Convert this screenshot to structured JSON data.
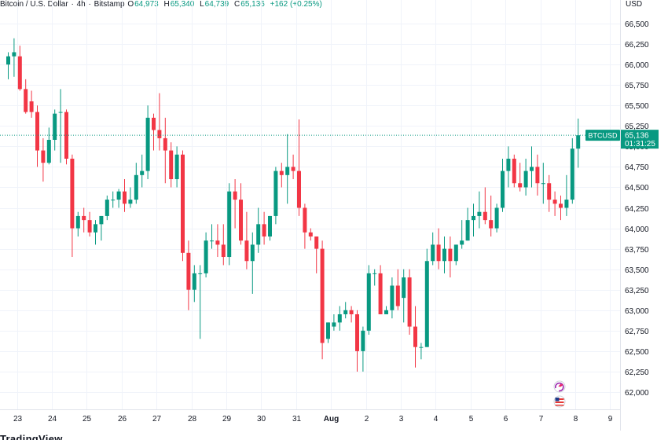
{
  "header": {
    "symbol": "Bitcoin / U.S. Dollar",
    "sep1": "·",
    "interval": "4h",
    "sep2": "·",
    "exchange": "Bitstamp",
    "open_label": "O",
    "open_value": "64,973",
    "high_label": "H",
    "high_value": "65,340",
    "low_label": "L",
    "low_value": "64,739",
    "close_label": "C",
    "close_value": "65,136",
    "change": "+162 (+0.25%)"
  },
  "currency": "USD",
  "footer": {
    "brand": "TradingView"
  },
  "colors": {
    "up": "#089981",
    "down": "#F23645",
    "grid": "#f0f3fa",
    "text": "#131722"
  },
  "chart_data": {
    "type": "candlestick",
    "symbol": "BTCUSD",
    "last_price_label": "65,136",
    "countdown": "01:31:25",
    "last_price": 65136,
    "ylim": [
      61750,
      66650
    ],
    "y_ticks": [
      62000,
      62250,
      62500,
      62750,
      63000,
      63250,
      63500,
      63750,
      64000,
      64250,
      64500,
      64750,
      65000,
      65250,
      65500,
      65750,
      66000,
      66250,
      66500
    ],
    "y_tick_labels": [
      "62,000",
      "62,250",
      "62,500",
      "62,750",
      "63,000",
      "63,250",
      "63,500",
      "63,750",
      "64,000",
      "64,250",
      "64,500",
      "64,750",
      "65,000",
      "65,250",
      "65,500",
      "65,750",
      "66,000",
      "66,250",
      "66,500"
    ],
    "x_ticks": [
      {
        "label": "23",
        "index": 1.5
      },
      {
        "label": "24",
        "index": 7.5
      },
      {
        "label": "25",
        "index": 13.5
      },
      {
        "label": "26",
        "index": 19.5
      },
      {
        "label": "27",
        "index": 25.5
      },
      {
        "label": "28",
        "index": 31.5
      },
      {
        "label": "29",
        "index": 37.5
      },
      {
        "label": "30",
        "index": 43.5
      },
      {
        "label": "31",
        "index": 49.5
      },
      {
        "label": "Aug",
        "index": 55.5
      },
      {
        "label": "2",
        "index": 61.5
      },
      {
        "label": "3",
        "index": 67.5
      },
      {
        "label": "4",
        "index": 73.5
      },
      {
        "label": "5",
        "index": 79.5
      },
      {
        "label": "6",
        "index": 85.5
      },
      {
        "label": "7",
        "index": 91.5
      },
      {
        "label": "8",
        "index": 97.5
      },
      {
        "label": "9",
        "index": 103.5
      }
    ],
    "candles": [
      [
        66000,
        66150,
        65820,
        66100
      ],
      [
        66100,
        66320,
        65850,
        66150
      ],
      [
        66100,
        66230,
        65680,
        65700
      ],
      [
        65700,
        65820,
        65400,
        65420
      ],
      [
        65550,
        65680,
        65350,
        65420
      ],
      [
        65420,
        65500,
        64750,
        64950
      ],
      [
        64950,
        65100,
        64570,
        64800
      ],
      [
        64800,
        65230,
        64780,
        65080
      ],
      [
        65080,
        65450,
        64950,
        65400
      ],
      [
        65420,
        65700,
        64800,
        65420
      ],
      [
        65420,
        65450,
        64780,
        64850
      ],
      [
        64850,
        64900,
        63650,
        64000
      ],
      [
        64000,
        64200,
        63900,
        64150
      ],
      [
        64150,
        64250,
        63950,
        64100
      ],
      [
        64100,
        64200,
        63900,
        63950
      ],
      [
        63950,
        64100,
        63800,
        64050
      ],
      [
        64050,
        64150,
        63850,
        64150
      ],
      [
        64150,
        64400,
        64100,
        64350
      ],
      [
        64350,
        64450,
        64250,
        64350
      ],
      [
        64350,
        64480,
        64250,
        64450
      ],
      [
        64450,
        64600,
        64200,
        64300
      ],
      [
        64300,
        64500,
        64250,
        64350
      ],
      [
        64350,
        64800,
        64300,
        64650
      ],
      [
        64650,
        64900,
        64500,
        64700
      ],
      [
        64700,
        65500,
        64600,
        65350
      ],
      [
        65350,
        65400,
        64950,
        65200
      ],
      [
        65200,
        65650,
        64950,
        65100
      ],
      [
        65100,
        65350,
        64550,
        64950
      ],
      [
        64950,
        65050,
        64500,
        64600
      ],
      [
        64600,
        65000,
        64500,
        64900
      ],
      [
        64900,
        64950,
        63600,
        63700
      ],
      [
        63700,
        63850,
        63000,
        63250
      ],
      [
        63250,
        63550,
        63100,
        63450
      ],
      [
        63450,
        63550,
        62650,
        63450
      ],
      [
        63450,
        63950,
        63400,
        63850
      ],
      [
        63850,
        64050,
        63750,
        63850
      ],
      [
        63850,
        64050,
        63650,
        63800
      ],
      [
        63800,
        64050,
        63550,
        63650
      ],
      [
        63650,
        64550,
        63550,
        64450
      ],
      [
        64450,
        64600,
        64000,
        64350
      ],
      [
        64350,
        64550,
        63800,
        63850
      ],
      [
        63850,
        64200,
        63500,
        63600
      ],
      [
        63600,
        63950,
        63200,
        63800
      ],
      [
        63800,
        64250,
        63700,
        64050
      ],
      [
        64050,
        64200,
        63800,
        63900
      ],
      [
        63900,
        64150,
        63850,
        64150
      ],
      [
        64150,
        64750,
        64050,
        64700
      ],
      [
        64700,
        64800,
        64500,
        64650
      ],
      [
        64650,
        65150,
        64300,
        64750
      ],
      [
        64750,
        64900,
        64600,
        64700
      ],
      [
        64700,
        65330,
        64150,
        64250
      ],
      [
        64250,
        64300,
        63750,
        63950
      ],
      [
        63950,
        64000,
        63850,
        63900
      ],
      [
        63900,
        63900,
        63450,
        63750
      ],
      [
        63750,
        63850,
        62400,
        62600
      ],
      [
        62650,
        62850,
        62600,
        62850
      ],
      [
        62800,
        62950,
        62750,
        62850
      ],
      [
        62850,
        63050,
        62750,
        62950
      ],
      [
        62950,
        63100,
        62900,
        63000
      ],
      [
        63000,
        63050,
        62850,
        62950
      ],
      [
        62950,
        63000,
        62250,
        62500
      ],
      [
        62500,
        62800,
        62250,
        62750
      ],
      [
        62750,
        63550,
        62700,
        63450
      ],
      [
        63450,
        63500,
        63300,
        63450
      ],
      [
        63450,
        63550,
        62950,
        62950
      ],
      [
        62950,
        63050,
        62950,
        63000
      ],
      [
        63000,
        63400,
        62900,
        63300
      ],
      [
        63300,
        63500,
        63000,
        63050
      ],
      [
        63150,
        63500,
        62850,
        63400
      ],
      [
        63400,
        63500,
        62700,
        62800
      ],
      [
        62800,
        63050,
        62300,
        62550
      ],
      [
        62550,
        62600,
        62400,
        62550
      ],
      [
        62550,
        63750,
        62550,
        63600
      ],
      [
        63600,
        63950,
        63550,
        63800
      ],
      [
        63800,
        64000,
        63500,
        63600
      ],
      [
        63600,
        63900,
        63450,
        63750
      ],
      [
        63750,
        63900,
        63400,
        63600
      ],
      [
        63600,
        63800,
        63550,
        63800
      ],
      [
        63800,
        64100,
        63750,
        63850
      ],
      [
        63850,
        64250,
        63850,
        64100
      ],
      [
        64100,
        64300,
        63900,
        64150
      ],
      [
        64150,
        64450,
        64000,
        64200
      ],
      [
        64200,
        64500,
        64050,
        64100
      ],
      [
        64100,
        64400,
        63900,
        64000
      ],
      [
        64000,
        64300,
        63950,
        64250
      ],
      [
        64250,
        64850,
        64200,
        64700
      ],
      [
        64700,
        65000,
        64500,
        64850
      ],
      [
        64850,
        64900,
        64500,
        64550
      ],
      [
        64550,
        64800,
        64450,
        64500
      ],
      [
        64500,
        64850,
        64400,
        64700
      ],
      [
        64700,
        65000,
        64500,
        64750
      ],
      [
        64750,
        64900,
        64400,
        64550
      ],
      [
        64550,
        64800,
        64300,
        64550
      ],
      [
        64550,
        64650,
        64200,
        64350
      ],
      [
        64350,
        64450,
        64150,
        64300
      ],
      [
        64300,
        64400,
        64100,
        64250
      ],
      [
        64250,
        64650,
        64150,
        64350
      ],
      [
        64350,
        65100,
        64300,
        64973
      ],
      [
        64973,
        65340,
        64739,
        65136
      ]
    ]
  }
}
